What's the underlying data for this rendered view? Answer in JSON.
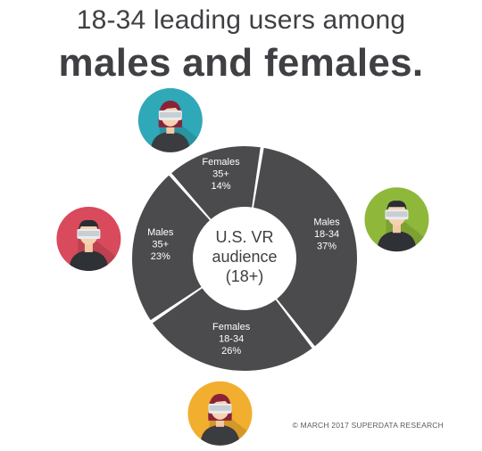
{
  "header": {
    "title_line1": "18-34 leading users among",
    "title_line2": "males and females."
  },
  "footer": {
    "credit": "© MARCH 2017 SUPERDATA RESEARCH"
  },
  "chart_data": {
    "type": "pie",
    "style": "donut",
    "center_label": [
      "U.S. VR",
      "audience",
      "(18+)"
    ],
    "slices": [
      {
        "label_lines": [
          "Males",
          "18-34",
          "37%"
        ],
        "value": 37,
        "icon": "male-vr-user-icon",
        "icon_color": "#8fb83a"
      },
      {
        "label_lines": [
          "Females",
          "18-34",
          "26%"
        ],
        "value": 26,
        "icon": "female-vr-user-icon",
        "icon_color": "#f2ae2e"
      },
      {
        "label_lines": [
          "Males",
          "35+",
          "23%"
        ],
        "value": 23,
        "icon": "male-vr-user-icon",
        "icon_color": "#d84a5c"
      },
      {
        "label_lines": [
          "Females",
          "35+",
          "14%"
        ],
        "value": 14,
        "icon": "female-vr-user-icon",
        "icon_color": "#2fa8b8"
      }
    ],
    "slice_color": "#4b4b4d",
    "label_color": "#ffffff",
    "center_color": "#ffffff"
  }
}
